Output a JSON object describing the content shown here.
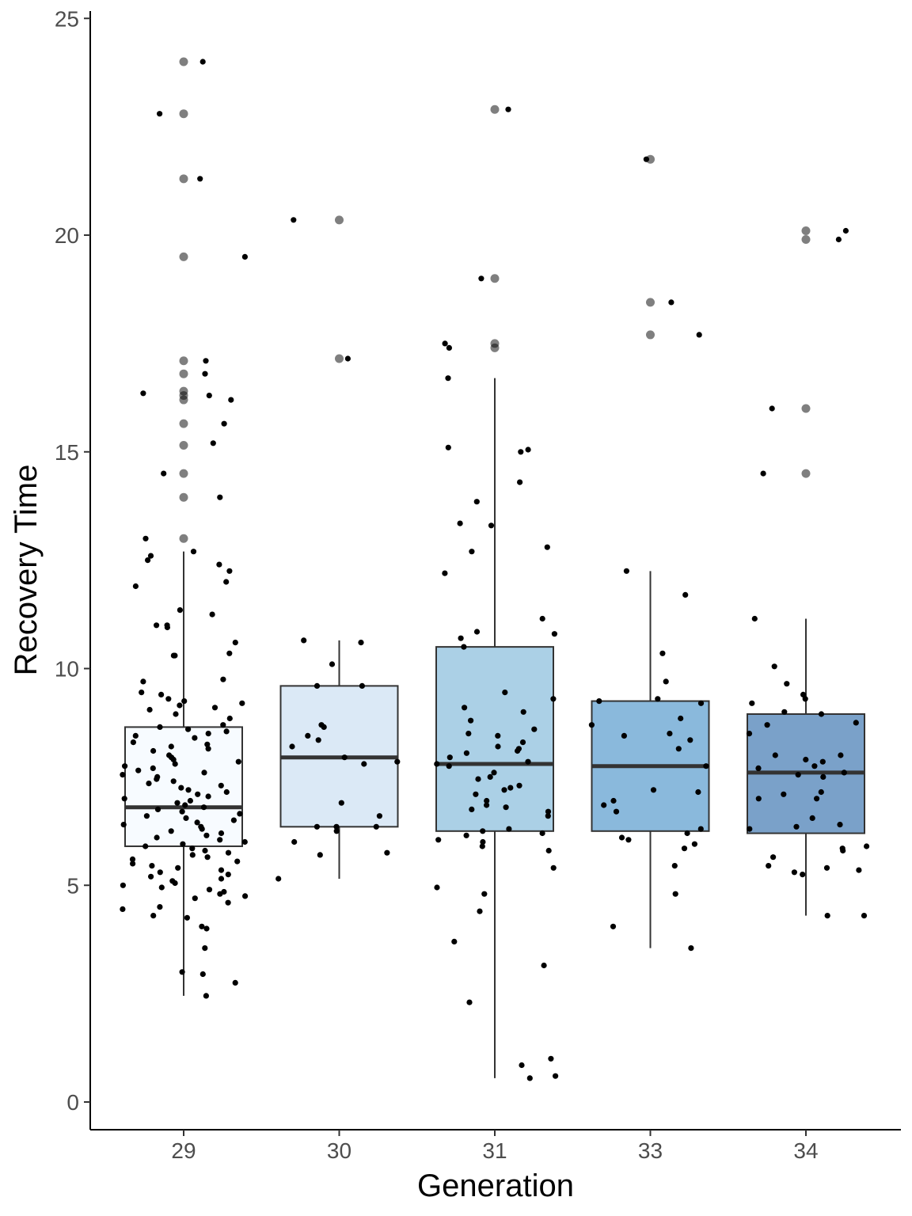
{
  "chart_data": {
    "type": "box",
    "xlabel": "Generation",
    "ylabel": "Recovery Time",
    "ylim": [
      0,
      25
    ],
    "yticks": [
      0,
      5,
      10,
      15,
      20,
      25
    ],
    "grid": false,
    "legend": "none",
    "categories": [
      "29",
      "30",
      "31",
      "33",
      "34"
    ],
    "boxes": [
      {
        "category": "29",
        "q1": 5.9,
        "median": 6.8,
        "q3": 8.65,
        "whisker_low": 2.45,
        "whisker_high": 12.7,
        "fill": "#f7fbff",
        "outliers": [
          24.0,
          22.8,
          21.3,
          19.5,
          17.1,
          16.8,
          16.4,
          16.3,
          16.2,
          15.65,
          15.15,
          14.5,
          13.95,
          13.0
        ]
      },
      {
        "category": "30",
        "q1": 6.35,
        "median": 7.95,
        "q3": 9.6,
        "whisker_low": 5.15,
        "whisker_high": 10.65,
        "fill": "#dbe9f6",
        "outliers": [
          20.35,
          17.15
        ]
      },
      {
        "category": "31",
        "q1": 6.25,
        "median": 7.8,
        "q3": 10.5,
        "whisker_low": 0.55,
        "whisker_high": 16.7,
        "fill": "#abd0e6",
        "outliers": [
          22.9,
          19.0,
          17.5,
          17.4
        ]
      },
      {
        "category": "33",
        "q1": 6.25,
        "median": 7.75,
        "q3": 9.25,
        "whisker_low": 3.55,
        "whisker_high": 12.25,
        "fill": "#8ab9dc",
        "outliers": [
          21.75,
          18.45,
          17.7
        ]
      },
      {
        "category": "34",
        "q1": 6.2,
        "median": 7.6,
        "q3": 8.95,
        "whisker_low": 4.3,
        "whisker_high": 11.15,
        "fill": "#7aa1c9",
        "outliers": [
          20.1,
          19.9,
          16.0,
          14.5
        ]
      }
    ],
    "jitter_points": [
      {
        "category": "29",
        "values": [
          24.0,
          22.8,
          21.3,
          19.5,
          17.1,
          16.8,
          16.35,
          16.2,
          16.3,
          15.65,
          15.2,
          14.5,
          13.95,
          13.0,
          12.7,
          12.6,
          12.5,
          12.4,
          12.25,
          12.0,
          11.9,
          11.35,
          11.25,
          11.0,
          11.0,
          10.95,
          10.6,
          10.35,
          10.3,
          10.3,
          9.75,
          9.7,
          9.45,
          9.4,
          9.3,
          9.25,
          9.2,
          9.15,
          9.1,
          9.05,
          8.95,
          8.85,
          8.7,
          8.65,
          8.6,
          8.55,
          8.5,
          8.45,
          8.4,
          8.3,
          8.25,
          8.2,
          8.15,
          8.1,
          8.0,
          7.95,
          7.9,
          7.85,
          7.8,
          7.75,
          7.7,
          7.65,
          7.6,
          7.55,
          7.5,
          7.45,
          7.4,
          7.35,
          7.3,
          7.25,
          7.2,
          7.15,
          7.1,
          7.05,
          7.0,
          6.95,
          6.9,
          6.85,
          6.8,
          6.75,
          6.7,
          6.65,
          6.6,
          6.55,
          6.5,
          6.45,
          6.4,
          6.35,
          6.3,
          6.25,
          6.2,
          6.15,
          6.1,
          6.05,
          6.0,
          5.95,
          5.9,
          5.85,
          5.8,
          5.75,
          5.7,
          5.65,
          5.6,
          5.55,
          5.5,
          5.45,
          5.4,
          5.35,
          5.3,
          5.25,
          5.2,
          5.15,
          5.1,
          5.05,
          5.0,
          4.95,
          4.9,
          4.85,
          4.8,
          4.75,
          4.7,
          4.6,
          4.5,
          4.45,
          4.3,
          4.25,
          4.05,
          4.0,
          3.55,
          3.0,
          2.95,
          2.75,
          2.45
        ]
      },
      {
        "category": "30",
        "values": [
          20.35,
          17.15,
          10.65,
          10.6,
          10.1,
          9.6,
          9.6,
          8.7,
          8.65,
          8.45,
          8.35,
          8.2,
          7.95,
          7.85,
          7.8,
          6.9,
          6.6,
          6.35,
          6.35,
          6.35,
          6.25,
          6.0,
          5.75,
          5.7,
          5.15
        ]
      },
      {
        "category": "31",
        "values": [
          22.9,
          19.0,
          17.5,
          17.4,
          16.7,
          15.1,
          15.05,
          15.0,
          14.3,
          13.85,
          13.35,
          13.3,
          12.8,
          12.7,
          12.2,
          11.15,
          10.85,
          10.8,
          10.7,
          10.5,
          9.45,
          9.3,
          9.1,
          9.0,
          8.8,
          8.6,
          8.5,
          8.45,
          8.3,
          8.2,
          8.15,
          8.1,
          8.05,
          7.95,
          7.85,
          7.8,
          7.75,
          7.6,
          7.5,
          7.45,
          7.3,
          7.25,
          7.2,
          7.1,
          6.95,
          6.85,
          6.8,
          6.75,
          6.7,
          6.6,
          6.3,
          6.25,
          6.2,
          6.15,
          6.05,
          6.0,
          5.9,
          5.8,
          5.4,
          4.95,
          4.8,
          4.4,
          3.7,
          3.15,
          2.3,
          1.0,
          0.85,
          0.6,
          0.55
        ]
      },
      {
        "category": "33",
        "values": [
          21.75,
          18.45,
          17.7,
          12.25,
          11.7,
          10.35,
          9.7,
          9.3,
          9.25,
          9.2,
          8.85,
          8.7,
          8.5,
          8.45,
          8.35,
          8.15,
          7.75,
          7.2,
          7.15,
          6.95,
          6.85,
          6.7,
          6.3,
          6.2,
          6.1,
          6.05,
          5.95,
          5.85,
          5.45,
          4.8,
          4.05,
          3.55
        ]
      },
      {
        "category": "34",
        "values": [
          20.1,
          19.9,
          16.0,
          14.5,
          11.15,
          10.05,
          9.65,
          9.4,
          9.3,
          9.2,
          9.0,
          8.95,
          8.75,
          8.7,
          8.5,
          8.0,
          8.0,
          7.9,
          7.85,
          7.75,
          7.7,
          7.6,
          7.55,
          7.5,
          7.15,
          7.1,
          7.0,
          7.0,
          6.55,
          6.4,
          6.35,
          6.3,
          5.9,
          5.85,
          5.8,
          5.65,
          5.45,
          5.4,
          5.35,
          5.3,
          5.25,
          4.3,
          4.3
        ]
      }
    ]
  }
}
